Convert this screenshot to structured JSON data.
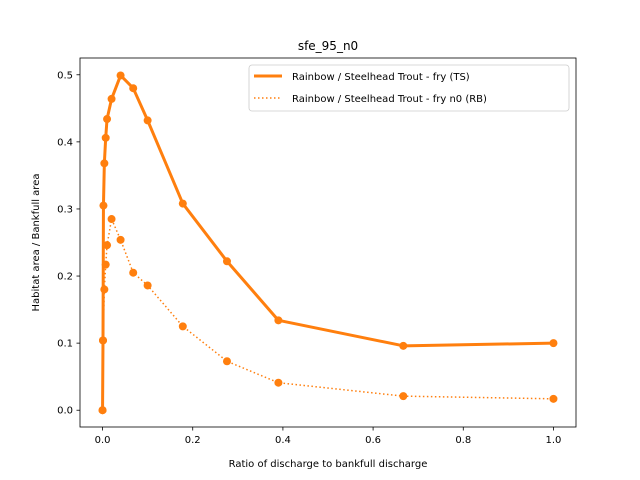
{
  "chart_data": {
    "type": "line",
    "title": "sfe_95_n0",
    "xlabel": "Ratio of discharge to bankfull discharge",
    "ylabel": "Habitat area / Bankfull area",
    "xlim": [
      -0.05,
      1.05
    ],
    "ylim": [
      -0.025,
      0.525
    ],
    "xticks": [
      0.0,
      0.2,
      0.4,
      0.6,
      0.8,
      1.0
    ],
    "xtick_labels": [
      "0.0",
      "0.2",
      "0.4",
      "0.6",
      "0.8",
      "1.0"
    ],
    "yticks": [
      0.0,
      0.1,
      0.2,
      0.3,
      0.4,
      0.5
    ],
    "ytick_labels": [
      "0.0",
      "0.1",
      "0.2",
      "0.3",
      "0.4",
      "0.5"
    ],
    "grid": false,
    "legend_position": "top-right",
    "series": [
      {
        "name": "Rainbow / Steelhead Trout - fry (TS)",
        "color": "#ff7f0e",
        "style": "solid",
        "x": [
          0.0,
          0.001,
          0.002,
          0.004,
          0.007,
          0.01,
          0.02,
          0.04,
          0.068,
          0.1,
          0.178,
          0.276,
          0.39,
          0.667,
          1.0
        ],
        "y": [
          0.0,
          0.104,
          0.305,
          0.368,
          0.406,
          0.434,
          0.464,
          0.499,
          0.48,
          0.432,
          0.308,
          0.222,
          0.134,
          0.096,
          0.1
        ]
      },
      {
        "name": "Rainbow / Steelhead Trout - fry n0 (RB)",
        "color": "#ff7f0e",
        "style": "dotted",
        "x": [
          0.0,
          0.001,
          0.004,
          0.007,
          0.01,
          0.02,
          0.04,
          0.068,
          0.1,
          0.178,
          0.276,
          0.39,
          0.667,
          1.0
        ],
        "y": [
          0.0,
          0.104,
          0.18,
          0.217,
          0.246,
          0.285,
          0.254,
          0.205,
          0.186,
          0.125,
          0.073,
          0.041,
          0.021,
          0.017
        ]
      }
    ]
  }
}
